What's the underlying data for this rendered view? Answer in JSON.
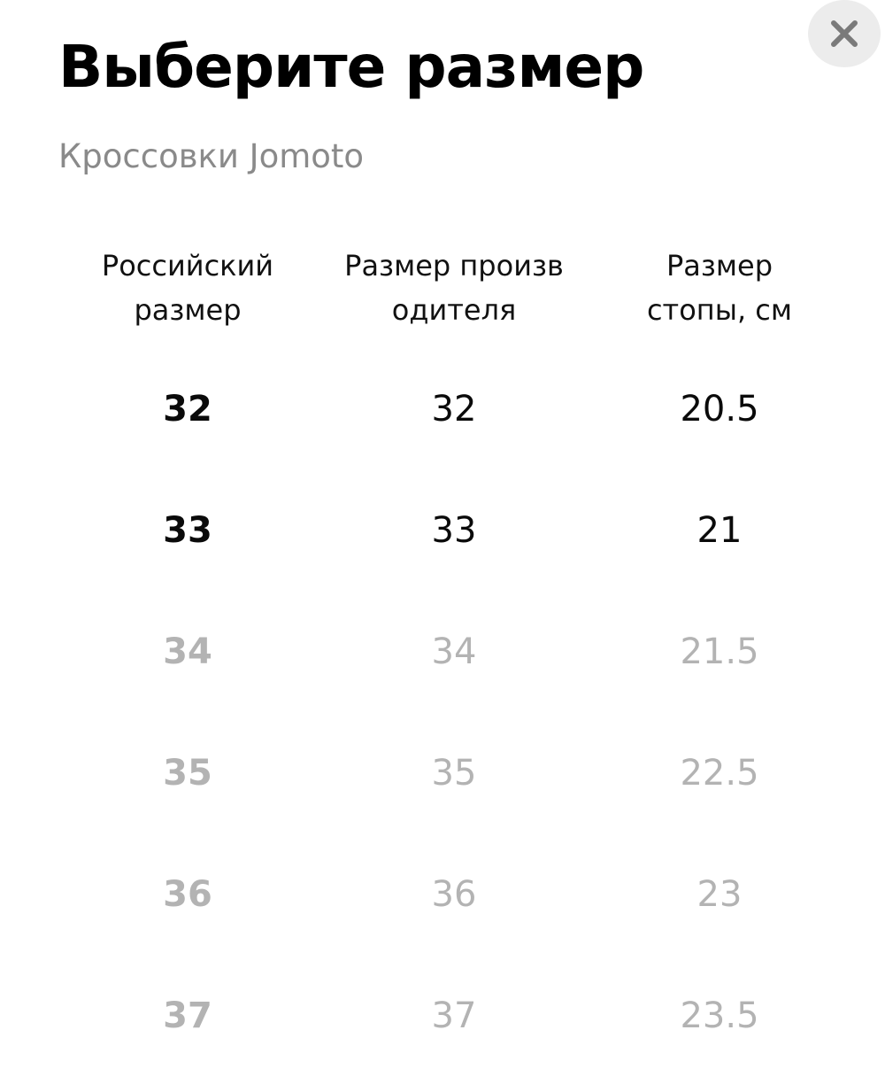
{
  "header": {
    "title": "Выберите размер",
    "subtitle": "Кроссовки Jomoto",
    "close_icon": "close-icon"
  },
  "table": {
    "columns": [
      "Российский размер",
      "Размер производителя",
      "Размер стопы, см"
    ],
    "rows": [
      {
        "ru": "32",
        "maker": "32",
        "foot": "20.5",
        "available": true
      },
      {
        "ru": "33",
        "maker": "33",
        "foot": "21",
        "available": true
      },
      {
        "ru": "34",
        "maker": "34",
        "foot": "21.5",
        "available": false
      },
      {
        "ru": "35",
        "maker": "35",
        "foot": "22.5",
        "available": false
      },
      {
        "ru": "36",
        "maker": "36",
        "foot": "23",
        "available": false
      },
      {
        "ru": "37",
        "maker": "37",
        "foot": "23.5",
        "available": false
      }
    ]
  },
  "colors": {
    "available_text": "#0a0a0a",
    "unavailable_text": "#b3b3b3",
    "subtitle_text": "#8a8a8a",
    "close_button_bg": "#ececec"
  }
}
